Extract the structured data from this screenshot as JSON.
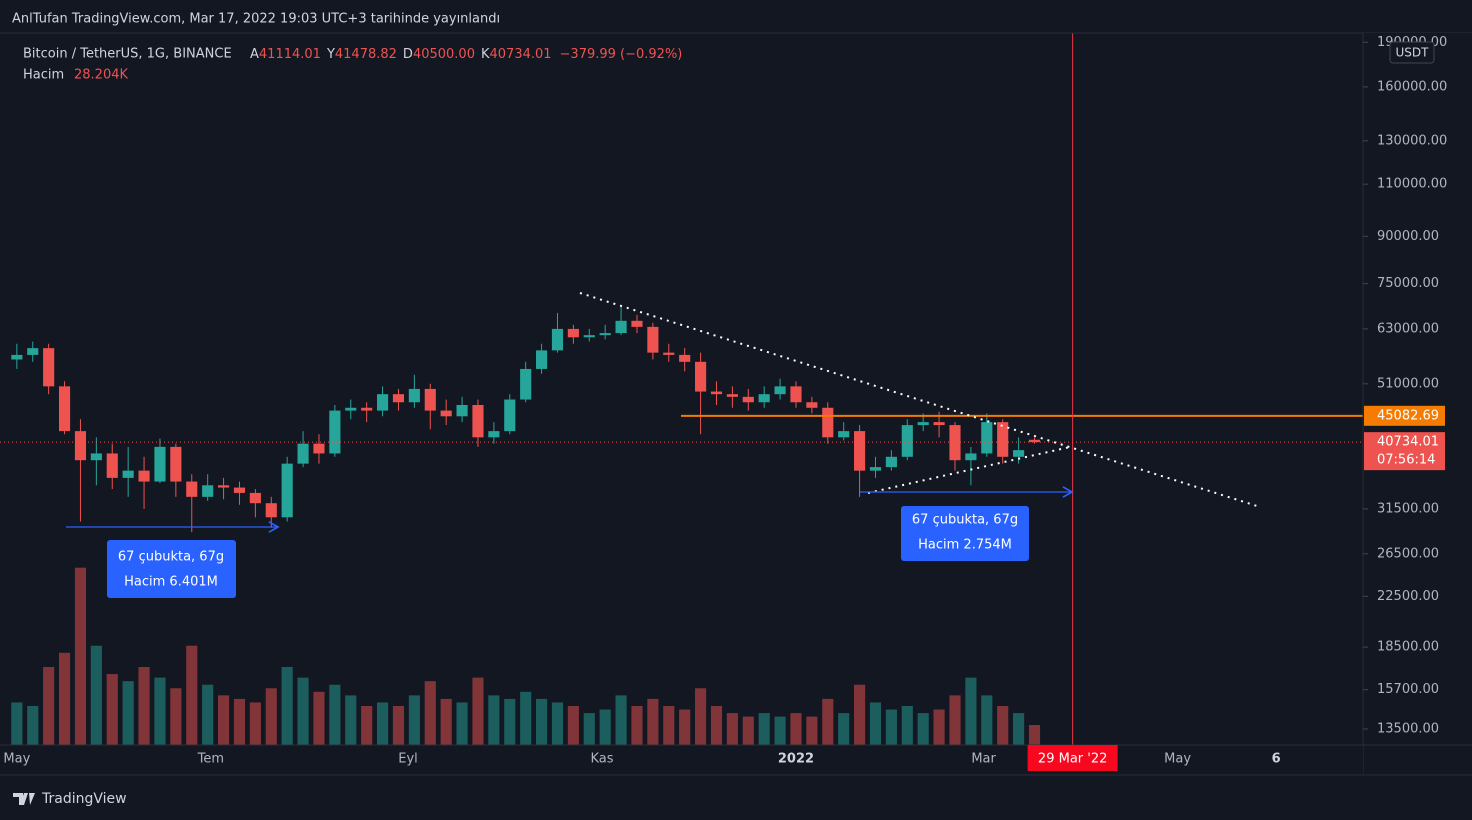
{
  "header": {
    "published": "AnlTufan TradingView.com, Mar 17, 2022 19:03 UTC+3 tarihinde yayınlandı",
    "symbol": "Bitcoin / TetherUS, 1G, BINANCE",
    "ohlc": [
      {
        "letter": "A",
        "value": "41114.01"
      },
      {
        "letter": "Y",
        "value": "41478.82"
      },
      {
        "letter": "D",
        "value": "40500.00"
      },
      {
        "letter": "K",
        "value": "40734.01"
      }
    ],
    "change": "−379.99 (−0.92%)",
    "volume_title": "Hacim",
    "volume_value": "28.204K",
    "currency": "USDT",
    "countdown": "07:56:14"
  },
  "annotations": [
    {
      "lines": [
        "67 çubukta, 67g",
        "Hacim 6.401M"
      ]
    },
    {
      "lines": [
        "67 çubukta, 67g",
        "Hacim 2.754M"
      ]
    }
  ],
  "footer": {
    "brand": "TradingView"
  },
  "chart_data": {
    "type": "candlestick",
    "log_scale": true,
    "grid": true,
    "up_color": "#26a69a",
    "down_color": "#ef5350",
    "level_color": "#f57c00",
    "x": [
      0,
      5,
      10,
      15,
      20,
      25,
      30,
      35,
      40,
      45,
      50,
      55,
      60,
      65,
      70,
      75,
      80,
      85,
      90,
      95,
      100,
      105,
      110,
      115,
      120,
      125,
      130,
      135,
      140,
      145,
      150,
      155,
      160,
      165,
      170,
      175,
      180,
      185,
      190,
      195,
      200,
      205,
      210,
      215,
      220,
      225,
      230,
      235,
      240,
      245,
      250,
      255,
      260,
      265,
      270,
      275,
      280,
      285,
      290,
      295,
      300,
      305,
      310,
      315,
      320
    ],
    "open": [
      56000,
      57000,
      58500,
      50500,
      42500,
      38000,
      39000,
      35500,
      36500,
      35000,
      40000,
      35000,
      33000,
      34500,
      34200,
      33500,
      32200,
      30500,
      37500,
      40500,
      39000,
      46000,
      46500,
      46000,
      49000,
      47500,
      50000,
      46000,
      45000,
      47000,
      41500,
      42500,
      48000,
      54000,
      58000,
      63000,
      61000,
      61500,
      62000,
      65000,
      63500,
      57500,
      57000,
      55500,
      49500,
      49000,
      48500,
      47500,
      49000,
      50500,
      47500,
      46500,
      41500,
      42500,
      36500,
      37000,
      38500,
      43500,
      44000,
      43500,
      38000,
      39000,
      44000,
      38500,
      41114.01
    ],
    "high": [
      59500,
      60000,
      59500,
      51500,
      44500,
      41500,
      40500,
      40000,
      38500,
      41300,
      40500,
      36000,
      36000,
      35500,
      35000,
      34000,
      33000,
      38500,
      42500,
      42000,
      47000,
      48000,
      47500,
      50500,
      50000,
      52800,
      51000,
      48000,
      48500,
      48000,
      44000,
      49000,
      55500,
      59500,
      67000,
      64000,
      63000,
      64000,
      69000,
      66500,
      64500,
      59500,
      58500,
      57500,
      51500,
      50500,
      50000,
      50500,
      52000,
      51500,
      48500,
      47500,
      44000,
      43500,
      38500,
      39500,
      44500,
      45500,
      45800,
      44000,
      40000,
      45500,
      44500,
      41500,
      41478.82
    ],
    "low": [
      54000,
      55500,
      49000,
      42000,
      30000,
      34500,
      34000,
      33000,
      31500,
      34800,
      33000,
      28800,
      32500,
      32700,
      32000,
      30500,
      29300,
      30000,
      37000,
      37500,
      38500,
      44500,
      44000,
      45000,
      46000,
      46500,
      42800,
      43500,
      44000,
      40000,
      40500,
      42000,
      47500,
      53000,
      57500,
      59500,
      60000,
      60500,
      61500,
      62000,
      56000,
      55500,
      53500,
      42000,
      47000,
      46500,
      46000,
      46500,
      48000,
      46500,
      45500,
      40500,
      41000,
      33000,
      35500,
      36500,
      38000,
      42500,
      41500,
      36500,
      34500,
      38500,
      37500,
      37500,
      40500
    ],
    "close": [
      57000,
      58500,
      50500,
      42500,
      38000,
      39000,
      35500,
      36500,
      35000,
      40000,
      35000,
      33000,
      34500,
      34200,
      33500,
      32200,
      30500,
      37500,
      40500,
      39000,
      46000,
      46500,
      46000,
      49000,
      47500,
      50000,
      46000,
      45000,
      47000,
      41500,
      42500,
      48000,
      54000,
      58000,
      63000,
      61000,
      61500,
      62000,
      65000,
      63500,
      57500,
      57000,
      55500,
      49500,
      49000,
      48500,
      47500,
      49000,
      50500,
      47500,
      46500,
      41500,
      42500,
      36500,
      37000,
      38500,
      43500,
      44000,
      43500,
      38000,
      39000,
      44000,
      38500,
      39500,
      40734.01
    ],
    "volume": [
      60,
      55,
      110,
      130,
      250,
      140,
      100,
      90,
      110,
      95,
      80,
      140,
      85,
      70,
      65,
      60,
      80,
      110,
      95,
      75,
      85,
      70,
      55,
      60,
      55,
      70,
      90,
      65,
      60,
      95,
      70,
      65,
      75,
      65,
      60,
      55,
      45,
      50,
      70,
      55,
      65,
      55,
      50,
      80,
      55,
      45,
      40,
      45,
      40,
      45,
      40,
      65,
      45,
      85,
      60,
      50,
      55,
      45,
      50,
      70,
      95,
      70,
      55,
      45,
      28.204
    ],
    "xlim": [
      -5.3,
      423.3
    ],
    "xticks": [
      {
        "value": 0,
        "label": "May"
      },
      {
        "value": 61,
        "label": "Tem"
      },
      {
        "value": 123,
        "label": "Eyl"
      },
      {
        "value": 184,
        "label": "Kas"
      },
      {
        "value": 245,
        "label": "2022"
      },
      {
        "value": 304,
        "label": "Mar"
      },
      {
        "value": 365,
        "label": "May"
      },
      {
        "value": 396,
        "label": "6"
      }
    ],
    "ylim": [
      12690,
      196900
    ],
    "yticks": [
      {
        "value": 13500,
        "label": "13500.00"
      },
      {
        "value": 15700,
        "label": "15700.00"
      },
      {
        "value": 18500,
        "label": "18500.00"
      },
      {
        "value": 22500,
        "label": "22500.00"
      },
      {
        "value": 26500,
        "label": "26500.00"
      },
      {
        "value": 31500,
        "label": "31500.00"
      },
      {
        "value": 51000,
        "label": "51000.00"
      },
      {
        "value": 63000,
        "label": "63000.00"
      },
      {
        "value": 75000,
        "label": "75000.00"
      },
      {
        "value": 90000,
        "label": "90000.00"
      },
      {
        "value": 110000,
        "label": "110000.00"
      },
      {
        "value": 130000,
        "label": "130000.00"
      },
      {
        "value": 160000,
        "label": "160000.00"
      },
      {
        "value": 190000,
        "label": "190000.00"
      }
    ],
    "volume_ylim": [
      0,
      282
    ],
    "level": 45082.69,
    "marker": {
      "value": 332,
      "label": "29 Mar '22"
    }
  }
}
